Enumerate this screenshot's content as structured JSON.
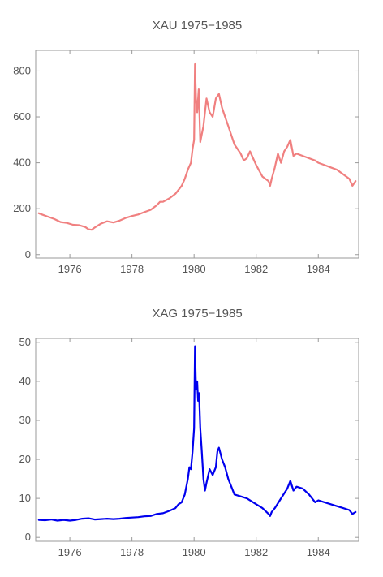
{
  "chart_data": [
    {
      "type": "line",
      "title": "XAU 1975−1985",
      "xlabel": "",
      "ylabel": "",
      "xlim": [
        1974.9,
        1985.3
      ],
      "ylim": [
        -15,
        890
      ],
      "xticks": [
        1976,
        1978,
        1980,
        1982,
        1984
      ],
      "yticks": [
        0,
        200,
        400,
        600,
        800
      ],
      "grid": false,
      "color": "#F08080",
      "series": [
        {
          "x": [
            1975.0,
            1975.1,
            1975.3,
            1975.5,
            1975.7,
            1975.9,
            1976.1,
            1976.3,
            1976.5,
            1976.6,
            1976.7,
            1976.8,
            1977.0,
            1977.2,
            1977.4,
            1977.6,
            1977.8,
            1978.0,
            1978.2,
            1978.4,
            1978.6,
            1978.8,
            1978.9,
            1979.0,
            1979.2,
            1979.4,
            1979.6,
            1979.7,
            1979.8,
            1979.9,
            1979.95,
            1980.0,
            1980.03,
            1980.06,
            1980.1,
            1980.15,
            1980.2,
            1980.3,
            1980.4,
            1980.5,
            1980.6,
            1980.7,
            1980.8,
            1980.9,
            1981.0,
            1981.1,
            1981.2,
            1981.3,
            1981.5,
            1981.6,
            1981.7,
            1981.8,
            1981.9,
            1982.0,
            1982.2,
            1982.4,
            1982.45,
            1982.5,
            1982.6,
            1982.7,
            1982.8,
            1982.9,
            1983.0,
            1983.1,
            1983.2,
            1983.3,
            1983.5,
            1983.7,
            1983.9,
            1984.0,
            1984.2,
            1984.4,
            1984.6,
            1984.8,
            1985.0,
            1985.1,
            1985.2
          ],
          "y": [
            180,
            175,
            165,
            155,
            142,
            138,
            130,
            128,
            120,
            110,
            108,
            118,
            135,
            145,
            140,
            148,
            160,
            168,
            175,
            185,
            195,
            215,
            230,
            230,
            245,
            265,
            300,
            330,
            370,
            400,
            460,
            500,
            830,
            680,
            620,
            720,
            490,
            560,
            680,
            620,
            600,
            680,
            700,
            640,
            600,
            560,
            520,
            480,
            440,
            410,
            420,
            450,
            420,
            390,
            340,
            320,
            300,
            330,
            380,
            440,
            400,
            450,
            470,
            500,
            430,
            440,
            430,
            420,
            410,
            400,
            390,
            380,
            370,
            350,
            330,
            300,
            320
          ]
        }
      ]
    },
    {
      "type": "line",
      "title": "XAG 1975−1985",
      "xlabel": "",
      "ylabel": "",
      "xlim": [
        1974.9,
        1985.3
      ],
      "ylim": [
        -1,
        51
      ],
      "xticks": [
        1976,
        1978,
        1980,
        1982,
        1984
      ],
      "yticks": [
        0,
        10,
        20,
        30,
        40,
        50
      ],
      "grid": false,
      "color": "#0000EE",
      "series": [
        {
          "x": [
            1975.0,
            1975.2,
            1975.4,
            1975.6,
            1975.8,
            1976.0,
            1976.2,
            1976.4,
            1976.6,
            1976.8,
            1977.0,
            1977.2,
            1977.4,
            1977.6,
            1977.8,
            1978.0,
            1978.2,
            1978.4,
            1978.6,
            1978.8,
            1979.0,
            1979.2,
            1979.4,
            1979.5,
            1979.6,
            1979.7,
            1979.75,
            1979.8,
            1979.85,
            1979.9,
            1979.95,
            1980.0,
            1980.03,
            1980.06,
            1980.1,
            1980.13,
            1980.16,
            1980.2,
            1980.25,
            1980.3,
            1980.35,
            1980.4,
            1980.5,
            1980.6,
            1980.7,
            1980.75,
            1980.8,
            1980.9,
            1981.0,
            1981.1,
            1981.2,
            1981.3,
            1981.5,
            1981.7,
            1981.9,
            1982.0,
            1982.2,
            1982.4,
            1982.45,
            1982.5,
            1982.6,
            1982.8,
            1983.0,
            1983.1,
            1983.2,
            1983.3,
            1983.5,
            1983.7,
            1983.9,
            1984.0,
            1984.2,
            1984.4,
            1984.6,
            1984.8,
            1985.0,
            1985.1,
            1985.2
          ],
          "y": [
            4.5,
            4.4,
            4.6,
            4.3,
            4.5,
            4.3,
            4.5,
            4.8,
            4.9,
            4.6,
            4.7,
            4.8,
            4.7,
            4.8,
            5.0,
            5.1,
            5.2,
            5.4,
            5.5,
            6.0,
            6.2,
            6.8,
            7.5,
            8.5,
            9.0,
            11.0,
            13.0,
            15.0,
            18.0,
            17.5,
            22.0,
            28.0,
            49.0,
            38.0,
            40.0,
            35.0,
            37.0,
            28.0,
            22.0,
            15.0,
            12.0,
            14.0,
            17.5,
            16.0,
            18.0,
            22.0,
            23.0,
            20.0,
            18.0,
            15.0,
            13.0,
            11.0,
            10.5,
            10.0,
            9.0,
            8.5,
            7.5,
            6.0,
            5.5,
            6.5,
            7.5,
            10.0,
            12.5,
            14.5,
            12.0,
            13.0,
            12.5,
            11.0,
            9.0,
            9.5,
            9.0,
            8.5,
            8.0,
            7.5,
            7.0,
            6.0,
            6.5
          ]
        }
      ]
    }
  ]
}
